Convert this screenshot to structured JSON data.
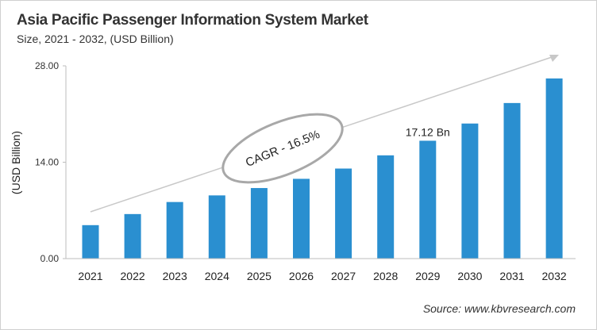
{
  "chart_data": {
    "type": "bar",
    "title": "Asia Pacific Passenger Information System Market",
    "subtitle": "Size, 2021 - 2032, (USD Billion)",
    "xlabel": "",
    "ylabel": "(USD Billion)",
    "ylim": [
      0,
      28
    ],
    "yticks": [
      "0.00",
      "14.00",
      "28.00"
    ],
    "categories": [
      "2021",
      "2022",
      "2023",
      "2024",
      "2025",
      "2026",
      "2027",
      "2028",
      "2029",
      "2030",
      "2031",
      "2032"
    ],
    "values": [
      4.86,
      6.47,
      8.22,
      9.18,
      10.25,
      11.59,
      13.08,
      15.0,
      17.12,
      19.62,
      22.6,
      26.17
    ],
    "data_labels": [
      {
        "category": "2029",
        "text": "17.12 Bn"
      }
    ],
    "annotation": "CAGR - 16.5%",
    "grid": false,
    "legend": "none",
    "bar_color": "#2a8fd0",
    "source": "Source: www.kbvresearch.com"
  }
}
